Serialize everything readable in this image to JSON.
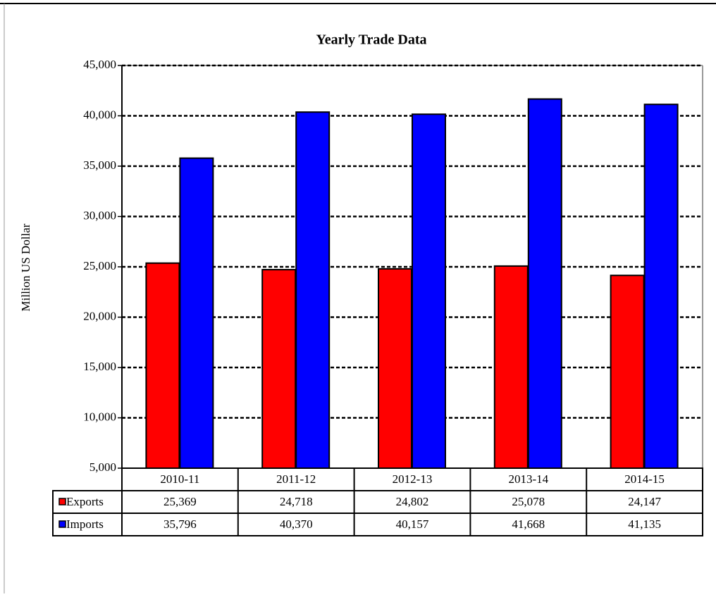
{
  "chart_data": {
    "type": "bar",
    "title": "Yearly Trade Data",
    "y_label": "Million US Dollar",
    "categories": [
      "2010-11",
      "2011-12",
      "2012-13",
      "2013-14",
      "2014-15"
    ],
    "series": [
      {
        "name": "Exports",
        "color": "#ff0000",
        "values": [
          25369,
          24718,
          24802,
          25078,
          24147
        ],
        "value_labels": [
          "25,369",
          "24,718",
          "24,802",
          "25,078",
          "24,147"
        ]
      },
      {
        "name": "Imports",
        "color": "#0000ff",
        "values": [
          35796,
          40370,
          40157,
          41668,
          41135
        ],
        "value_labels": [
          "35,796",
          "40,370",
          "40,157",
          "41,668",
          "41,135"
        ]
      }
    ],
    "ylim": [
      5000,
      45000
    ],
    "yticks": [
      {
        "value": 5000,
        "label": "5,000"
      },
      {
        "value": 10000,
        "label": "10,000"
      },
      {
        "value": 15000,
        "label": "15,000"
      },
      {
        "value": 20000,
        "label": "20,000"
      },
      {
        "value": 25000,
        "label": "25,000"
      },
      {
        "value": 30000,
        "label": "30,000"
      },
      {
        "value": 35000,
        "label": "35,000"
      },
      {
        "value": 40000,
        "label": "40,000"
      },
      {
        "value": 45000,
        "label": "45,000"
      }
    ],
    "grid": true
  }
}
